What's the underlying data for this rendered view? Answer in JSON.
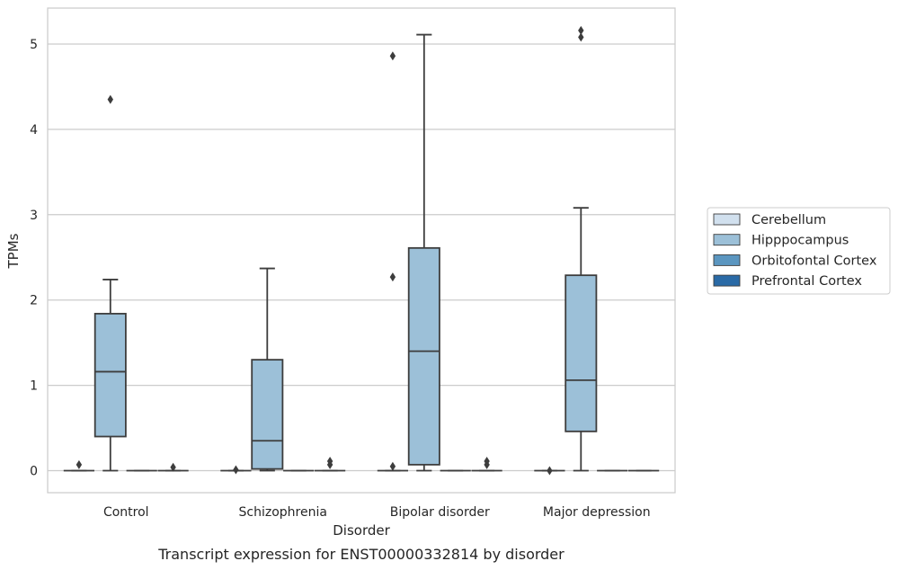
{
  "chart_data": {
    "type": "box",
    "title": "",
    "caption": "Transcript expression for ENST00000332814 by disorder",
    "xlabel": "Disorder",
    "ylabel": "TPMs",
    "ylim": [
      -0.25,
      5.4
    ],
    "yticks": [
      0,
      1,
      2,
      3,
      4,
      5
    ],
    "grid": "horizontal",
    "legend_position": "right",
    "categories": [
      "Control",
      "Schizophrenia",
      "Bipolar disorder",
      "Major depression"
    ],
    "series": [
      {
        "name": "Cerebellum",
        "color": "#d1e0ee",
        "boxes": [
          {
            "q1": 0,
            "median": 0,
            "q3": 0,
            "whisker_low": 0,
            "whisker_high": 0,
            "outliers": [
              0.07
            ]
          },
          {
            "q1": 0,
            "median": 0,
            "q3": 0,
            "whisker_low": 0,
            "whisker_high": 0,
            "outliers": [
              0.01
            ]
          },
          {
            "q1": 0,
            "median": 0,
            "q3": 0,
            "whisker_low": 0,
            "whisker_high": 0,
            "outliers": [
              0.05,
              2.27,
              4.86
            ]
          },
          {
            "q1": 0,
            "median": 0,
            "q3": 0,
            "whisker_low": 0,
            "whisker_high": 0,
            "outliers": [
              0.0
            ]
          }
        ]
      },
      {
        "name": "Hipppocampus",
        "color": "#9cc0d8",
        "boxes": [
          {
            "q1": 0.4,
            "median": 1.16,
            "q3": 1.84,
            "whisker_low": 0,
            "whisker_high": 2.24,
            "outliers": [
              4.35
            ]
          },
          {
            "q1": 0.02,
            "median": 0.35,
            "q3": 1.3,
            "whisker_low": 0,
            "whisker_high": 2.37,
            "outliers": []
          },
          {
            "q1": 0.07,
            "median": 1.4,
            "q3": 2.61,
            "whisker_low": 0,
            "whisker_high": 5.11,
            "outliers": []
          },
          {
            "q1": 0.46,
            "median": 1.06,
            "q3": 2.29,
            "whisker_low": 0,
            "whisker_high": 3.08,
            "outliers": [
              5.08,
              5.16
            ]
          }
        ]
      },
      {
        "name": "Orbitofontal Cortex",
        "color": "#5b96c0",
        "boxes": [
          {
            "q1": 0,
            "median": 0,
            "q3": 0,
            "whisker_low": 0,
            "whisker_high": 0,
            "outliers": []
          },
          {
            "q1": 0,
            "median": 0,
            "q3": 0,
            "whisker_low": 0,
            "whisker_high": 0,
            "outliers": []
          },
          {
            "q1": 0,
            "median": 0,
            "q3": 0,
            "whisker_low": 0,
            "whisker_high": 0,
            "outliers": []
          },
          {
            "q1": 0,
            "median": 0,
            "q3": 0,
            "whisker_low": 0,
            "whisker_high": 0,
            "outliers": []
          }
        ]
      },
      {
        "name": "Prefrontal Cortex",
        "color": "#2a6aa6",
        "boxes": [
          {
            "q1": 0,
            "median": 0,
            "q3": 0,
            "whisker_low": 0,
            "whisker_high": 0,
            "outliers": [
              0.04
            ]
          },
          {
            "q1": 0,
            "median": 0,
            "q3": 0,
            "whisker_low": 0,
            "whisker_high": 0,
            "outliers": [
              0.07,
              0.11
            ]
          },
          {
            "q1": 0,
            "median": 0,
            "q3": 0,
            "whisker_low": 0,
            "whisker_high": 0,
            "outliers": [
              0.07,
              0.11
            ]
          },
          {
            "q1": 0,
            "median": 0,
            "q3": 0,
            "whisker_low": 0,
            "whisker_high": 0,
            "outliers": []
          }
        ]
      }
    ]
  }
}
